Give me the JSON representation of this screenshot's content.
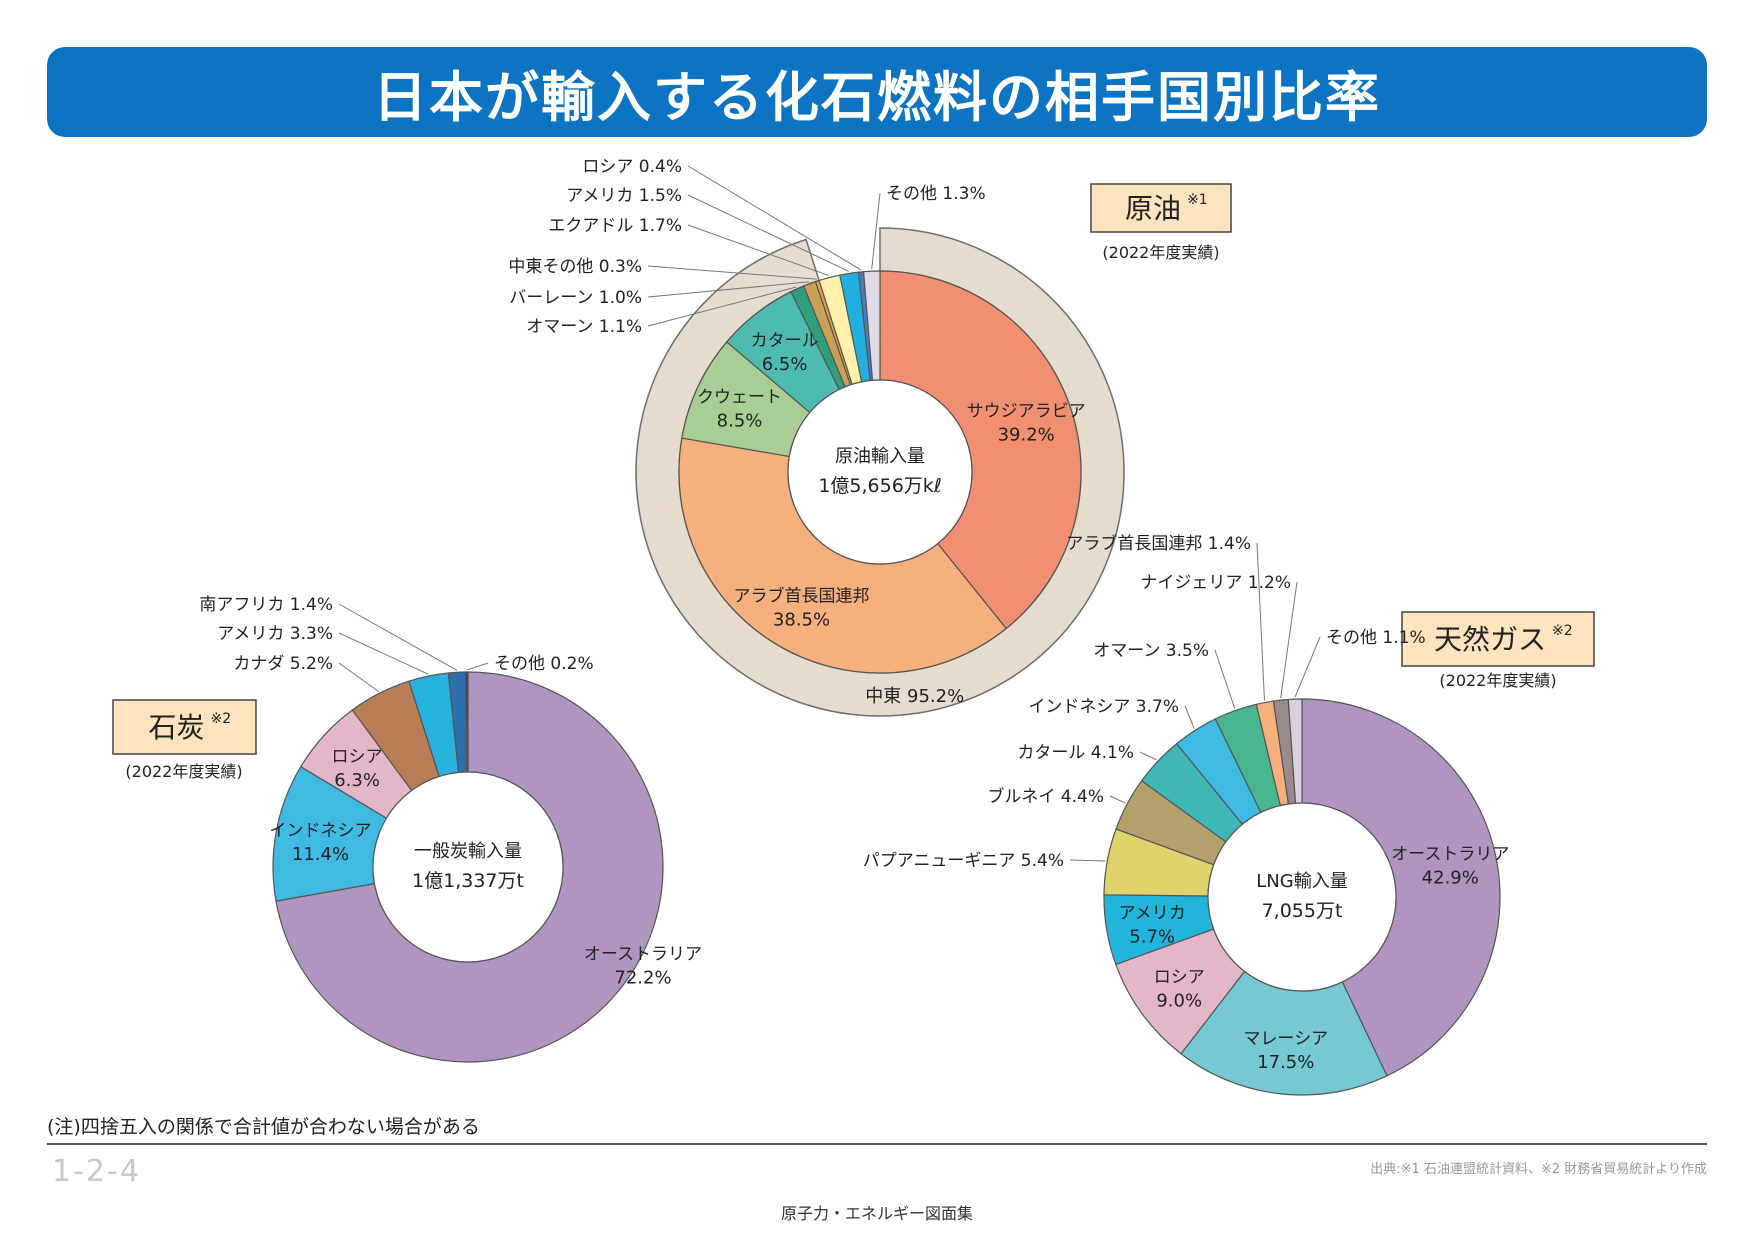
{
  "title": "日本が輸入する化石燃料の相手国別比率",
  "note": "(注)四捨五入の関係で合計値が合わない場合がある",
  "page_number": "1-2-4",
  "source": "出典:※1 石油連盟統計資料、※2 財務省貿易統計より作成",
  "footer": "原子力・エネルギー図面集",
  "colors": {
    "title_bg": "#0c74c2",
    "tag_bg": "#fde3be",
    "mideast_ring": "#e6dccd"
  },
  "chart_data": [
    {
      "type": "pie",
      "title": "原油",
      "title_sup": "※1",
      "subtitle": "(2022年度実績)",
      "center_label": "原油輸入量",
      "center_value": "1億5,656万kℓ",
      "slices": [
        {
          "label": "サウジアラビア",
          "value": 39.2,
          "color": "#f08f72"
        },
        {
          "label": "アラブ首長国連邦",
          "value": 38.5,
          "color": "#f5b07d"
        },
        {
          "label": "クウェート",
          "value": 8.5,
          "color": "#a8ce96"
        },
        {
          "label": "カタール",
          "value": 6.5,
          "color": "#4dbcaf"
        },
        {
          "label": "オマーン",
          "value": 1.1,
          "color": "#2f9e7d"
        },
        {
          "label": "バーレーン",
          "value": 1.0,
          "color": "#c9a058"
        },
        {
          "label": "中東その他",
          "value": 0.3,
          "color": "#f19a48"
        },
        {
          "label": "エクアドル",
          "value": 1.7,
          "color": "#fff2a8"
        },
        {
          "label": "アメリカ",
          "value": 1.5,
          "color": "#23aee0"
        },
        {
          "label": "ロシア",
          "value": 0.4,
          "color": "#4a7dbd"
        },
        {
          "label": "その他",
          "value": 1.3,
          "color": "#e1dbe9"
        }
      ],
      "group": {
        "label": "中東",
        "value": 95.2
      }
    },
    {
      "type": "pie",
      "title": "石炭",
      "title_sup": "※2",
      "subtitle": "(2022年度実績)",
      "center_label": "一般炭輸入量",
      "center_value": "1億1,337万t",
      "slices": [
        {
          "label": "オーストラリア",
          "value": 72.2,
          "color": "#b095c1"
        },
        {
          "label": "インドネシア",
          "value": 11.4,
          "color": "#3fbae2"
        },
        {
          "label": "ロシア",
          "value": 6.3,
          "color": "#e3b7c9"
        },
        {
          "label": "カナダ",
          "value": 5.2,
          "color": "#b97e55"
        },
        {
          "label": "アメリカ",
          "value": 3.3,
          "color": "#27b2dd"
        },
        {
          "label": "南アフリカ",
          "value": 1.4,
          "color": "#2c70ad"
        },
        {
          "label": "その他",
          "value": 0.2,
          "color": "#3d3f5e"
        }
      ]
    },
    {
      "type": "pie",
      "title": "天然ガス",
      "title_sup": "※2",
      "subtitle": "(2022年度実績)",
      "center_label": "LNG輸入量",
      "center_value": "7,055万t",
      "slices": [
        {
          "label": "オーストラリア",
          "value": 42.9,
          "color": "#b095c1"
        },
        {
          "label": "マレーシア",
          "value": 17.5,
          "color": "#76c8d2"
        },
        {
          "label": "ロシア",
          "value": 9.0,
          "color": "#e3b7c9"
        },
        {
          "label": "アメリカ",
          "value": 5.7,
          "color": "#22b5dc"
        },
        {
          "label": "パプアニューギニア",
          "value": 5.4,
          "color": "#dfd46c"
        },
        {
          "label": "ブルネイ",
          "value": 4.4,
          "color": "#b3a06c"
        },
        {
          "label": "カタール",
          "value": 4.1,
          "color": "#3fb7b5"
        },
        {
          "label": "インドネシア",
          "value": 3.7,
          "color": "#3fbae2"
        },
        {
          "label": "オマーン",
          "value": 3.5,
          "color": "#48b691"
        },
        {
          "label": "アラブ首長国連邦",
          "value": 1.4,
          "color": "#f5b07d"
        },
        {
          "label": "ナイジェリア",
          "value": 1.2,
          "color": "#9b8a8c"
        },
        {
          "label": "その他",
          "value": 1.1,
          "color": "#d8d0de"
        }
      ]
    }
  ]
}
